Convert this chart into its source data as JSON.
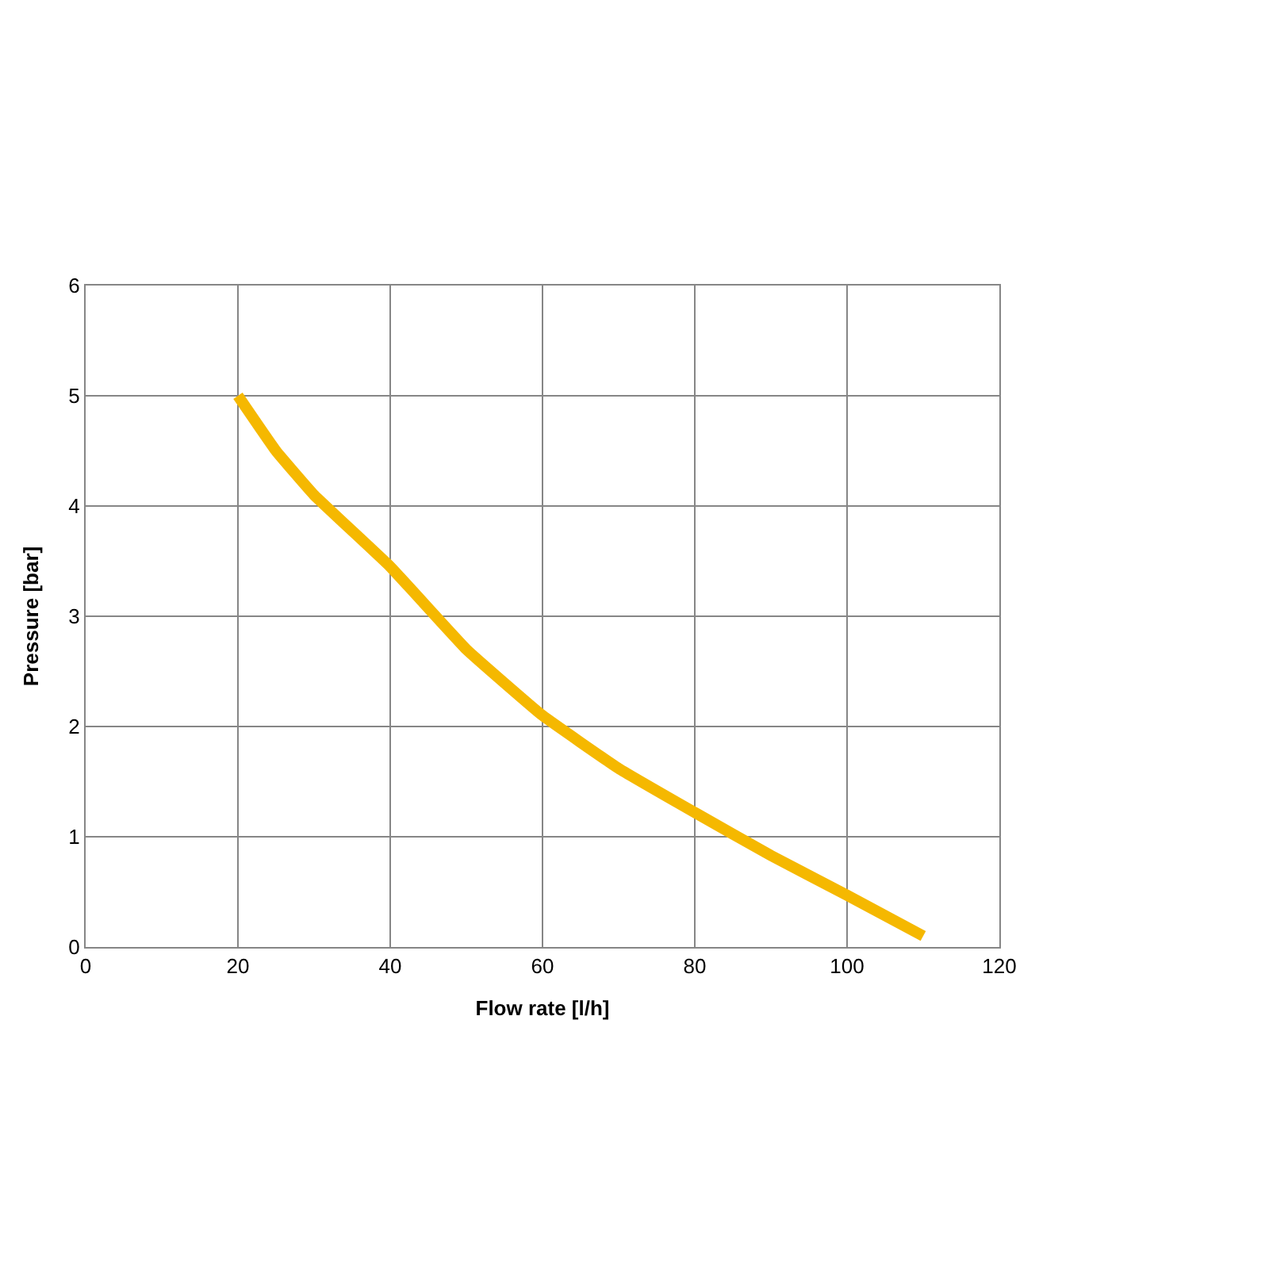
{
  "chart_data": {
    "type": "line",
    "xlabel": "Flow rate [l/h]",
    "ylabel": "Pressure [bar]",
    "x": [
      20,
      25,
      30,
      40,
      50,
      60,
      70,
      80,
      90,
      100,
      110
    ],
    "series": [
      {
        "color": "#f5b800",
        "values": [
          5.0,
          4.5,
          4.1,
          3.45,
          2.7,
          2.1,
          1.62,
          1.22,
          0.83,
          0.47,
          0.1
        ]
      }
    ],
    "xlim": [
      0,
      120
    ],
    "xticks": [
      0,
      20,
      40,
      60,
      80,
      100,
      120
    ],
    "ylim": [
      0,
      6
    ],
    "yticks": [
      0,
      1,
      2,
      3,
      4,
      5,
      6
    ],
    "grid": true,
    "legend": false,
    "marker": "none",
    "line_style": "solid"
  }
}
